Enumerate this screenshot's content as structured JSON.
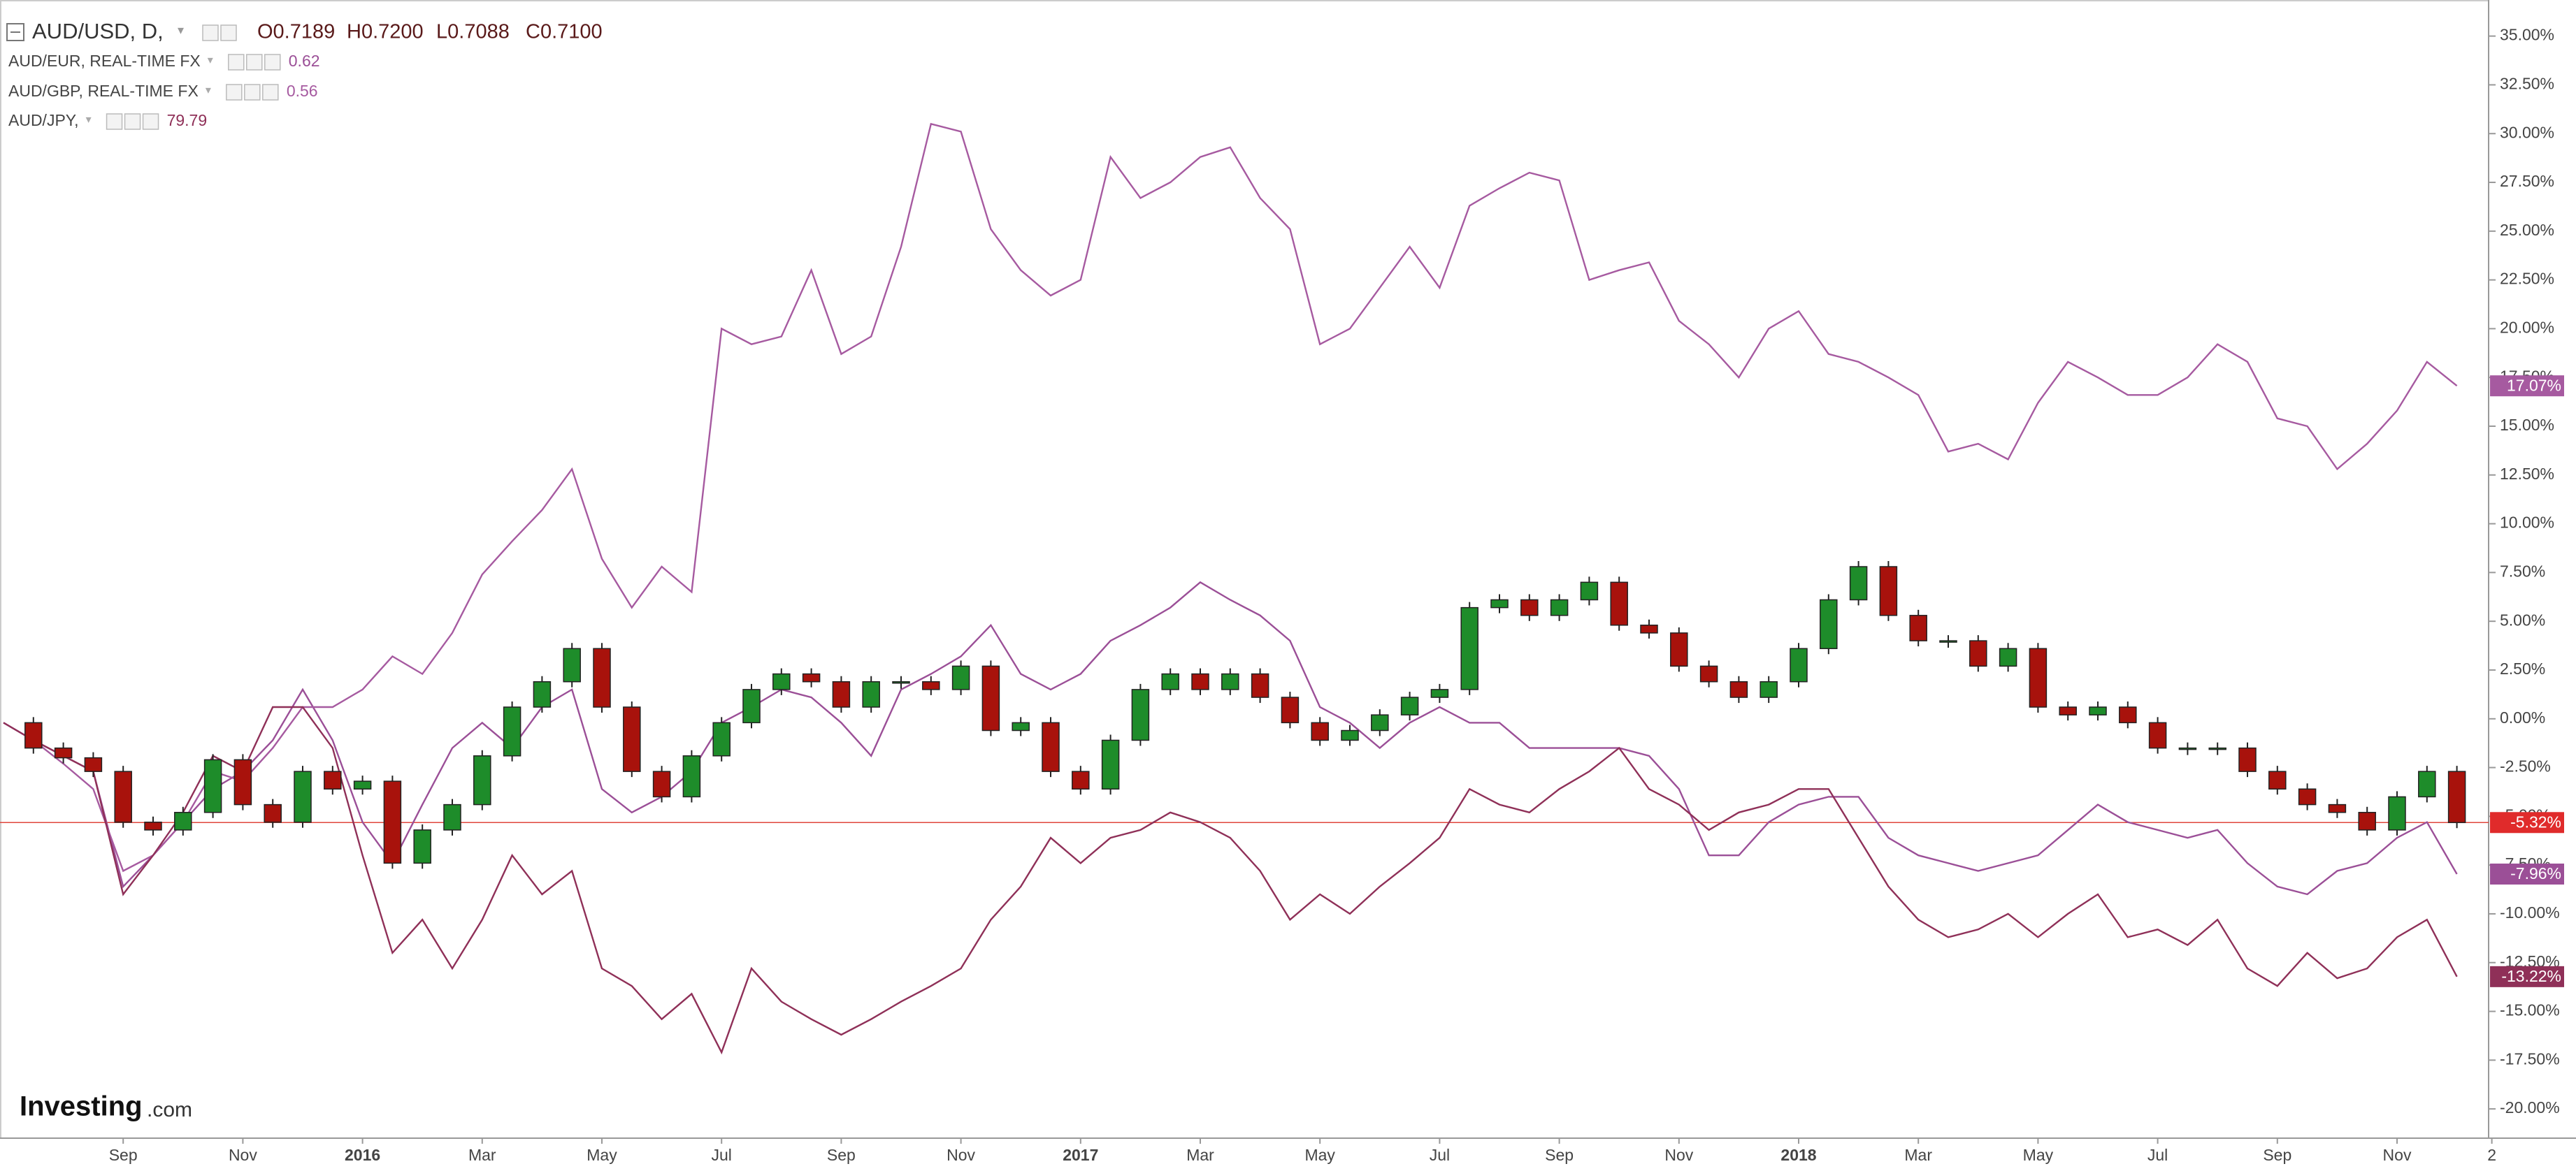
{
  "chart_data": {
    "type": "candlestick",
    "ohlc": [
      "O0.7189",
      "H0.7200",
      "L0.7088",
      "C0.7100"
    ],
    "logo": [
      "Investing",
      ".com"
    ],
    "categories": [
      null,
      null,
      null,
      null,
      "Sep",
      null,
      null,
      null,
      "Nov",
      null,
      null,
      null,
      "2016",
      null,
      null,
      null,
      "Mar",
      null,
      null,
      null,
      "May",
      null,
      null,
      null,
      "Jul",
      null,
      null,
      null,
      "Sep",
      null,
      null,
      null,
      "Nov",
      null,
      null,
      null,
      "2017",
      null,
      null,
      null,
      "Mar",
      null,
      null,
      null,
      "May",
      null,
      null,
      null,
      "Jul",
      null,
      null,
      null,
      "Sep",
      null,
      null,
      null,
      "Nov",
      null,
      null,
      null,
      "2018",
      null,
      null,
      null,
      "Mar",
      null,
      null,
      null,
      "May",
      null,
      null,
      null,
      "Jul",
      null,
      null,
      null,
      "Sep",
      null,
      null,
      null,
      "Nov",
      null,
      "2"
    ],
    "ylim": [
      -21.5,
      36.85
    ],
    "yticks": [
      {
        "value": 35,
        "label": "35.00%"
      },
      {
        "value": 32.5,
        "label": "32.50%"
      },
      {
        "value": 30,
        "label": "30.00%"
      },
      {
        "value": 27.5,
        "label": "27.50%"
      },
      {
        "value": 25,
        "label": "25.00%"
      },
      {
        "value": 22.5,
        "label": "22.50%"
      },
      {
        "value": 20,
        "label": "20.00%"
      },
      {
        "value": 17.5,
        "label": "17.50%"
      },
      {
        "value": 15,
        "label": "15.00%"
      },
      {
        "value": 12.5,
        "label": "12.50%"
      },
      {
        "value": 10,
        "label": "10.00%"
      },
      {
        "value": 7.5,
        "label": "7.50%"
      },
      {
        "value": 5,
        "label": "5.00%"
      },
      {
        "value": 2.5,
        "label": "2.50%"
      },
      {
        "value": 0,
        "label": "0.00%"
      },
      {
        "value": -2.5,
        "label": "-2.50%"
      },
      {
        "value": -5,
        "label": "-5.00%"
      },
      {
        "value": -7.5,
        "label": "-7.50%"
      },
      {
        "value": -10,
        "label": "-10.00%"
      },
      {
        "value": -12.5,
        "label": "-12.50%"
      },
      {
        "value": -15,
        "label": "-15.00%"
      },
      {
        "value": -17.5,
        "label": "-17.50%"
      },
      {
        "value": -20,
        "label": "-20.00%"
      }
    ],
    "up_color": "#1e8c2a",
    "down_color": "#a8120c",
    "series": [
      {
        "name": "AUD/USD, D,",
        "color": "#e0463c",
        "end_label": "-5.32%",
        "values": [
          -0.2,
          -1.5,
          -2.0,
          -2.7,
          -5.3,
          -5.7,
          -4.8,
          -2.1,
          -4.4,
          -5.3,
          -2.7,
          -3.6,
          -3.2,
          -7.4,
          -5.7,
          -4.4,
          -1.9,
          0.6,
          1.9,
          3.6,
          0.6,
          -2.7,
          -4.0,
          -1.9,
          -0.2,
          1.5,
          2.3,
          1.9,
          0.6,
          1.9,
          1.9,
          1.5,
          2.7,
          -0.6,
          -0.2,
          -2.7,
          -3.6,
          -1.1,
          1.5,
          2.3,
          1.5,
          2.3,
          1.1,
          -0.2,
          -1.1,
          -0.6,
          0.2,
          1.1,
          1.5,
          5.7,
          6.1,
          5.3,
          6.1,
          7.0,
          4.8,
          4.4,
          2.7,
          1.9,
          1.1,
          1.9,
          3.6,
          6.1,
          7.8,
          5.3,
          4.0,
          4.0,
          2.7,
          3.6,
          0.6,
          0.2,
          0.6,
          -0.2,
          -1.5,
          -1.5,
          -1.5,
          -2.7,
          -3.6,
          -4.4,
          -4.8,
          -5.7,
          -4.0,
          -2.7,
          -5.32
        ]
      },
      {
        "name": "AUD/EUR, REAL-TIME FX",
        "color": "#9b4f97",
        "last": "0.62",
        "end_label": "-7.96%",
        "values": [
          -0.2,
          -1.1,
          -1.9,
          -2.7,
          -8.6,
          -7.0,
          -5.3,
          -3.6,
          -2.7,
          -1.1,
          1.5,
          -1.1,
          -5.3,
          -7.4,
          -4.4,
          -1.5,
          -0.2,
          -1.5,
          0.6,
          1.5,
          -3.6,
          -4.8,
          -4.0,
          -2.7,
          -0.2,
          0.6,
          1.5,
          1.1,
          -0.2,
          -1.9,
          1.5,
          2.3,
          3.2,
          4.8,
          2.3,
          1.5,
          2.3,
          4.0,
          4.8,
          5.7,
          7.0,
          6.1,
          5.3,
          4.0,
          0.6,
          -0.2,
          -1.5,
          -0.2,
          0.6,
          -0.2,
          -0.2,
          -1.5,
          -1.5,
          -1.5,
          -1.5,
          -1.9,
          -3.6,
          -7.0,
          -7.0,
          -5.3,
          -4.4,
          -4.0,
          -4.0,
          -6.1,
          -7.0,
          -7.4,
          -7.8,
          -7.4,
          -7.0,
          -5.7,
          -4.4,
          -5.3,
          -5.7,
          -6.1,
          -5.7,
          -7.4,
          -8.6,
          -9.0,
          -7.8,
          -7.4,
          -6.1,
          -5.3,
          -7.96
        ]
      },
      {
        "name": "AUD/GBP, REAL-TIME FX",
        "color": "#a65aa0",
        "last": "0.56",
        "end_label": "17.07%",
        "values": [
          -0.2,
          -1.1,
          -2.3,
          -3.6,
          -7.8,
          -7.0,
          -5.3,
          -2.7,
          -3.2,
          -1.5,
          0.6,
          0.6,
          1.5,
          3.2,
          2.3,
          4.4,
          7.4,
          9.1,
          10.7,
          12.8,
          8.2,
          5.7,
          7.8,
          6.5,
          20.0,
          19.2,
          19.6,
          23.0,
          18.7,
          19.6,
          24.2,
          30.5,
          30.1,
          25.1,
          23.0,
          21.7,
          22.5,
          28.8,
          26.7,
          27.5,
          28.8,
          29.3,
          26.7,
          25.1,
          19.2,
          20.0,
          22.1,
          24.2,
          22.1,
          26.3,
          27.2,
          28.0,
          27.6,
          22.5,
          23.0,
          23.4,
          20.4,
          19.2,
          17.5,
          20.0,
          20.9,
          18.7,
          18.3,
          17.5,
          16.6,
          13.7,
          14.1,
          13.3,
          16.2,
          18.3,
          17.5,
          16.6,
          16.6,
          17.5,
          19.2,
          18.3,
          15.4,
          15.0,
          12.8,
          14.1,
          15.8,
          18.3,
          17.07
        ]
      },
      {
        "name": "AUD/JPY,",
        "color": "#8f3058",
        "last": "79.79",
        "end_label": "-13.22%",
        "values": [
          -0.2,
          -1.1,
          -1.9,
          -2.7,
          -9.0,
          -7.0,
          -4.8,
          -1.9,
          -2.7,
          0.6,
          0.6,
          -1.5,
          -7.0,
          -12.0,
          -10.3,
          -12.8,
          -10.3,
          -7.0,
          -9.0,
          -7.8,
          -12.8,
          -13.7,
          -15.4,
          -14.1,
          -17.1,
          -12.8,
          -14.5,
          -15.4,
          -16.2,
          -15.4,
          -14.5,
          -13.7,
          -12.8,
          -10.3,
          -8.6,
          -6.1,
          -7.4,
          -6.1,
          -5.7,
          -4.8,
          -5.3,
          -6.1,
          -7.8,
          -10.3,
          -9.0,
          -10.0,
          -8.6,
          -7.4,
          -6.1,
          -3.6,
          -4.4,
          -4.8,
          -3.6,
          -2.7,
          -1.5,
          -3.6,
          -4.4,
          -5.7,
          -4.8,
          -4.4,
          -3.6,
          -3.6,
          -6.1,
          -8.6,
          -10.3,
          -11.2,
          -10.8,
          -10.0,
          -11.2,
          -10.0,
          -9.0,
          -11.2,
          -10.8,
          -11.6,
          -10.3,
          -12.8,
          -13.7,
          -12.0,
          -13.3,
          -12.8,
          -11.2,
          -10.3,
          -13.22
        ]
      }
    ]
  }
}
